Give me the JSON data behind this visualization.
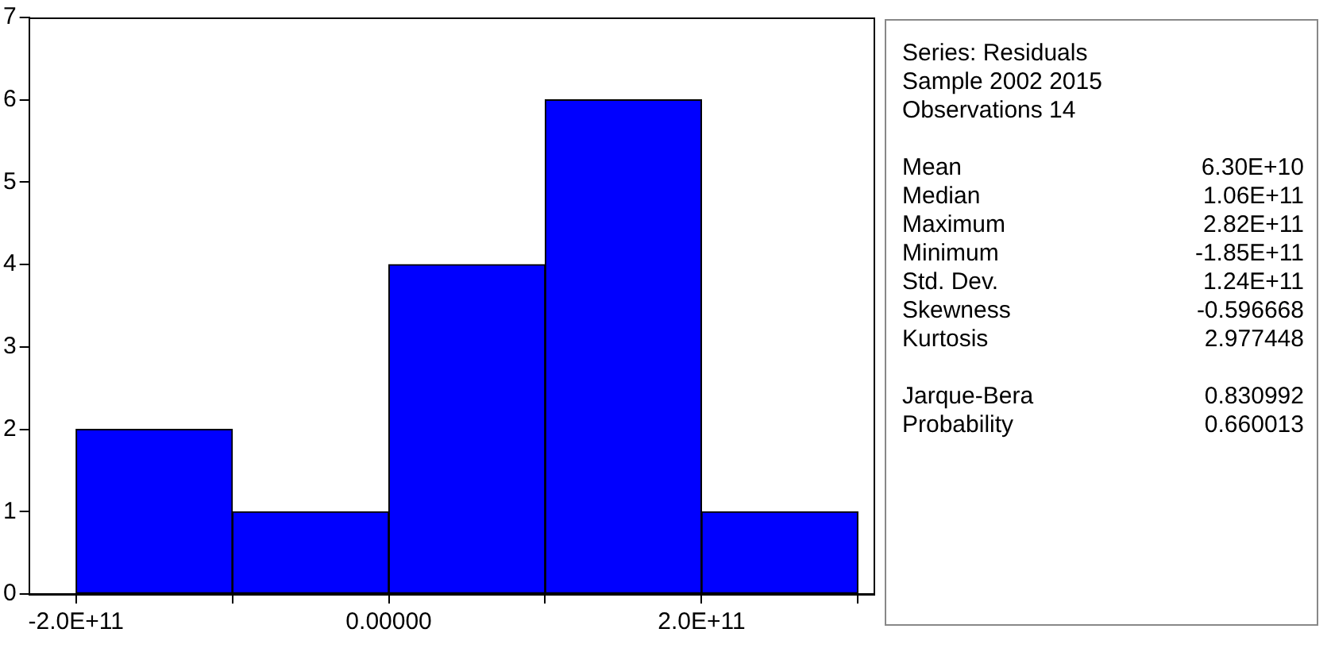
{
  "chart_data": {
    "type": "histogram",
    "bins": [
      -200000000000.0,
      -100000000000.0,
      0,
      100000000000.0,
      200000000000.0,
      300000000000.0
    ],
    "values": [
      2,
      1,
      4,
      6,
      1
    ],
    "color": "#0000ff",
    "xlim": [
      -230000000000.0,
      310000000000.0
    ],
    "xticks": [
      {
        "value": -200000000000.0,
        "label": "-2.0E+11"
      },
      {
        "value": -100000000000.0,
        "label": null
      },
      {
        "value": 0,
        "label": "0.00000"
      },
      {
        "value": 100000000000.0,
        "label": null
      },
      {
        "value": 200000000000.0,
        "label": "2.0E+11"
      },
      {
        "value": 300000000000.0,
        "label": null
      }
    ],
    "ylim": [
      0,
      7
    ],
    "yticks": [
      0,
      1,
      2,
      3,
      4,
      5,
      6,
      7
    ],
    "grid": false,
    "legend": false,
    "annotations": [
      "Series: Residuals",
      "Sample 2002 2015",
      "Observations 14",
      "\nMean\t6.30E+10",
      "Median\t1.06E+11",
      "Maximum\t2.82E+11",
      "Minimum\t-1.85E+11",
      "Std. Dev.\t1.24E+11",
      "Skewness\t-0.596668",
      "Kurtosis\t2.977448",
      "\nJarque-Bera\t0.830992",
      "Probability\t0.660013"
    ]
  }
}
